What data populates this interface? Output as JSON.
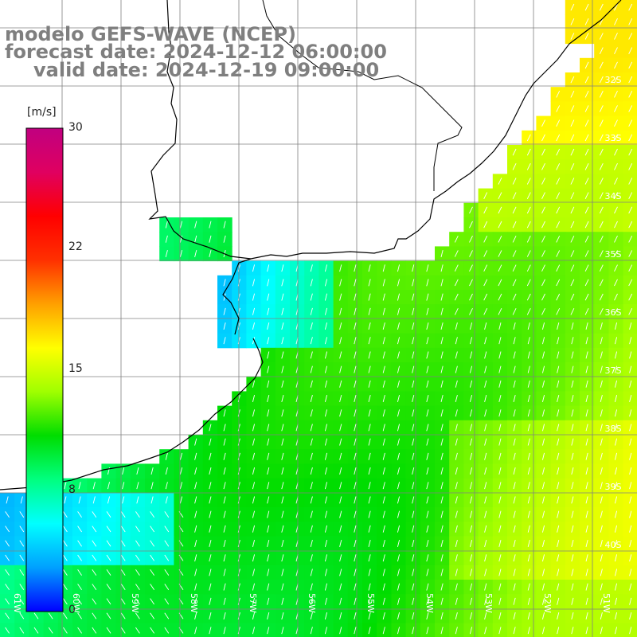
{
  "header": {
    "title": "modelo GEFS-WAVE (NCEP)",
    "forecast": "forecast date: 2024-12-12 06:00:00",
    "valid": "valid date: 2024-12-19 09:00:00"
  },
  "colorbar": {
    "unit": "[m/s]",
    "ticks": [
      "30",
      "22",
      "15",
      "8",
      "0"
    ],
    "tick_values": [
      30,
      22,
      15,
      8,
      0
    ],
    "range": [
      0,
      30
    ],
    "colors": [
      "#0000ff",
      "#00a0ff",
      "#00ffff",
      "#00ff80",
      "#00dd00",
      "#a0ff00",
      "#ffff00",
      "#ffa000",
      "#ff3000",
      "#ff0000",
      "#e00060",
      "#c00080"
    ]
  },
  "lat_labels": [
    "32S",
    "33S",
    "34S",
    "35S",
    "36S",
    "37S",
    "38S",
    "39S",
    "40S"
  ],
  "lon_labels": [
    "61W",
    "60W",
    "59W",
    "58W",
    "57W",
    "56W",
    "55W",
    "54W",
    "53W",
    "52W",
    "51W"
  ],
  "map": {
    "land_color": "#ffffff",
    "coast_color": "#000000",
    "grid_color": "#808080",
    "arrow_color": "#ffffff"
  }
}
